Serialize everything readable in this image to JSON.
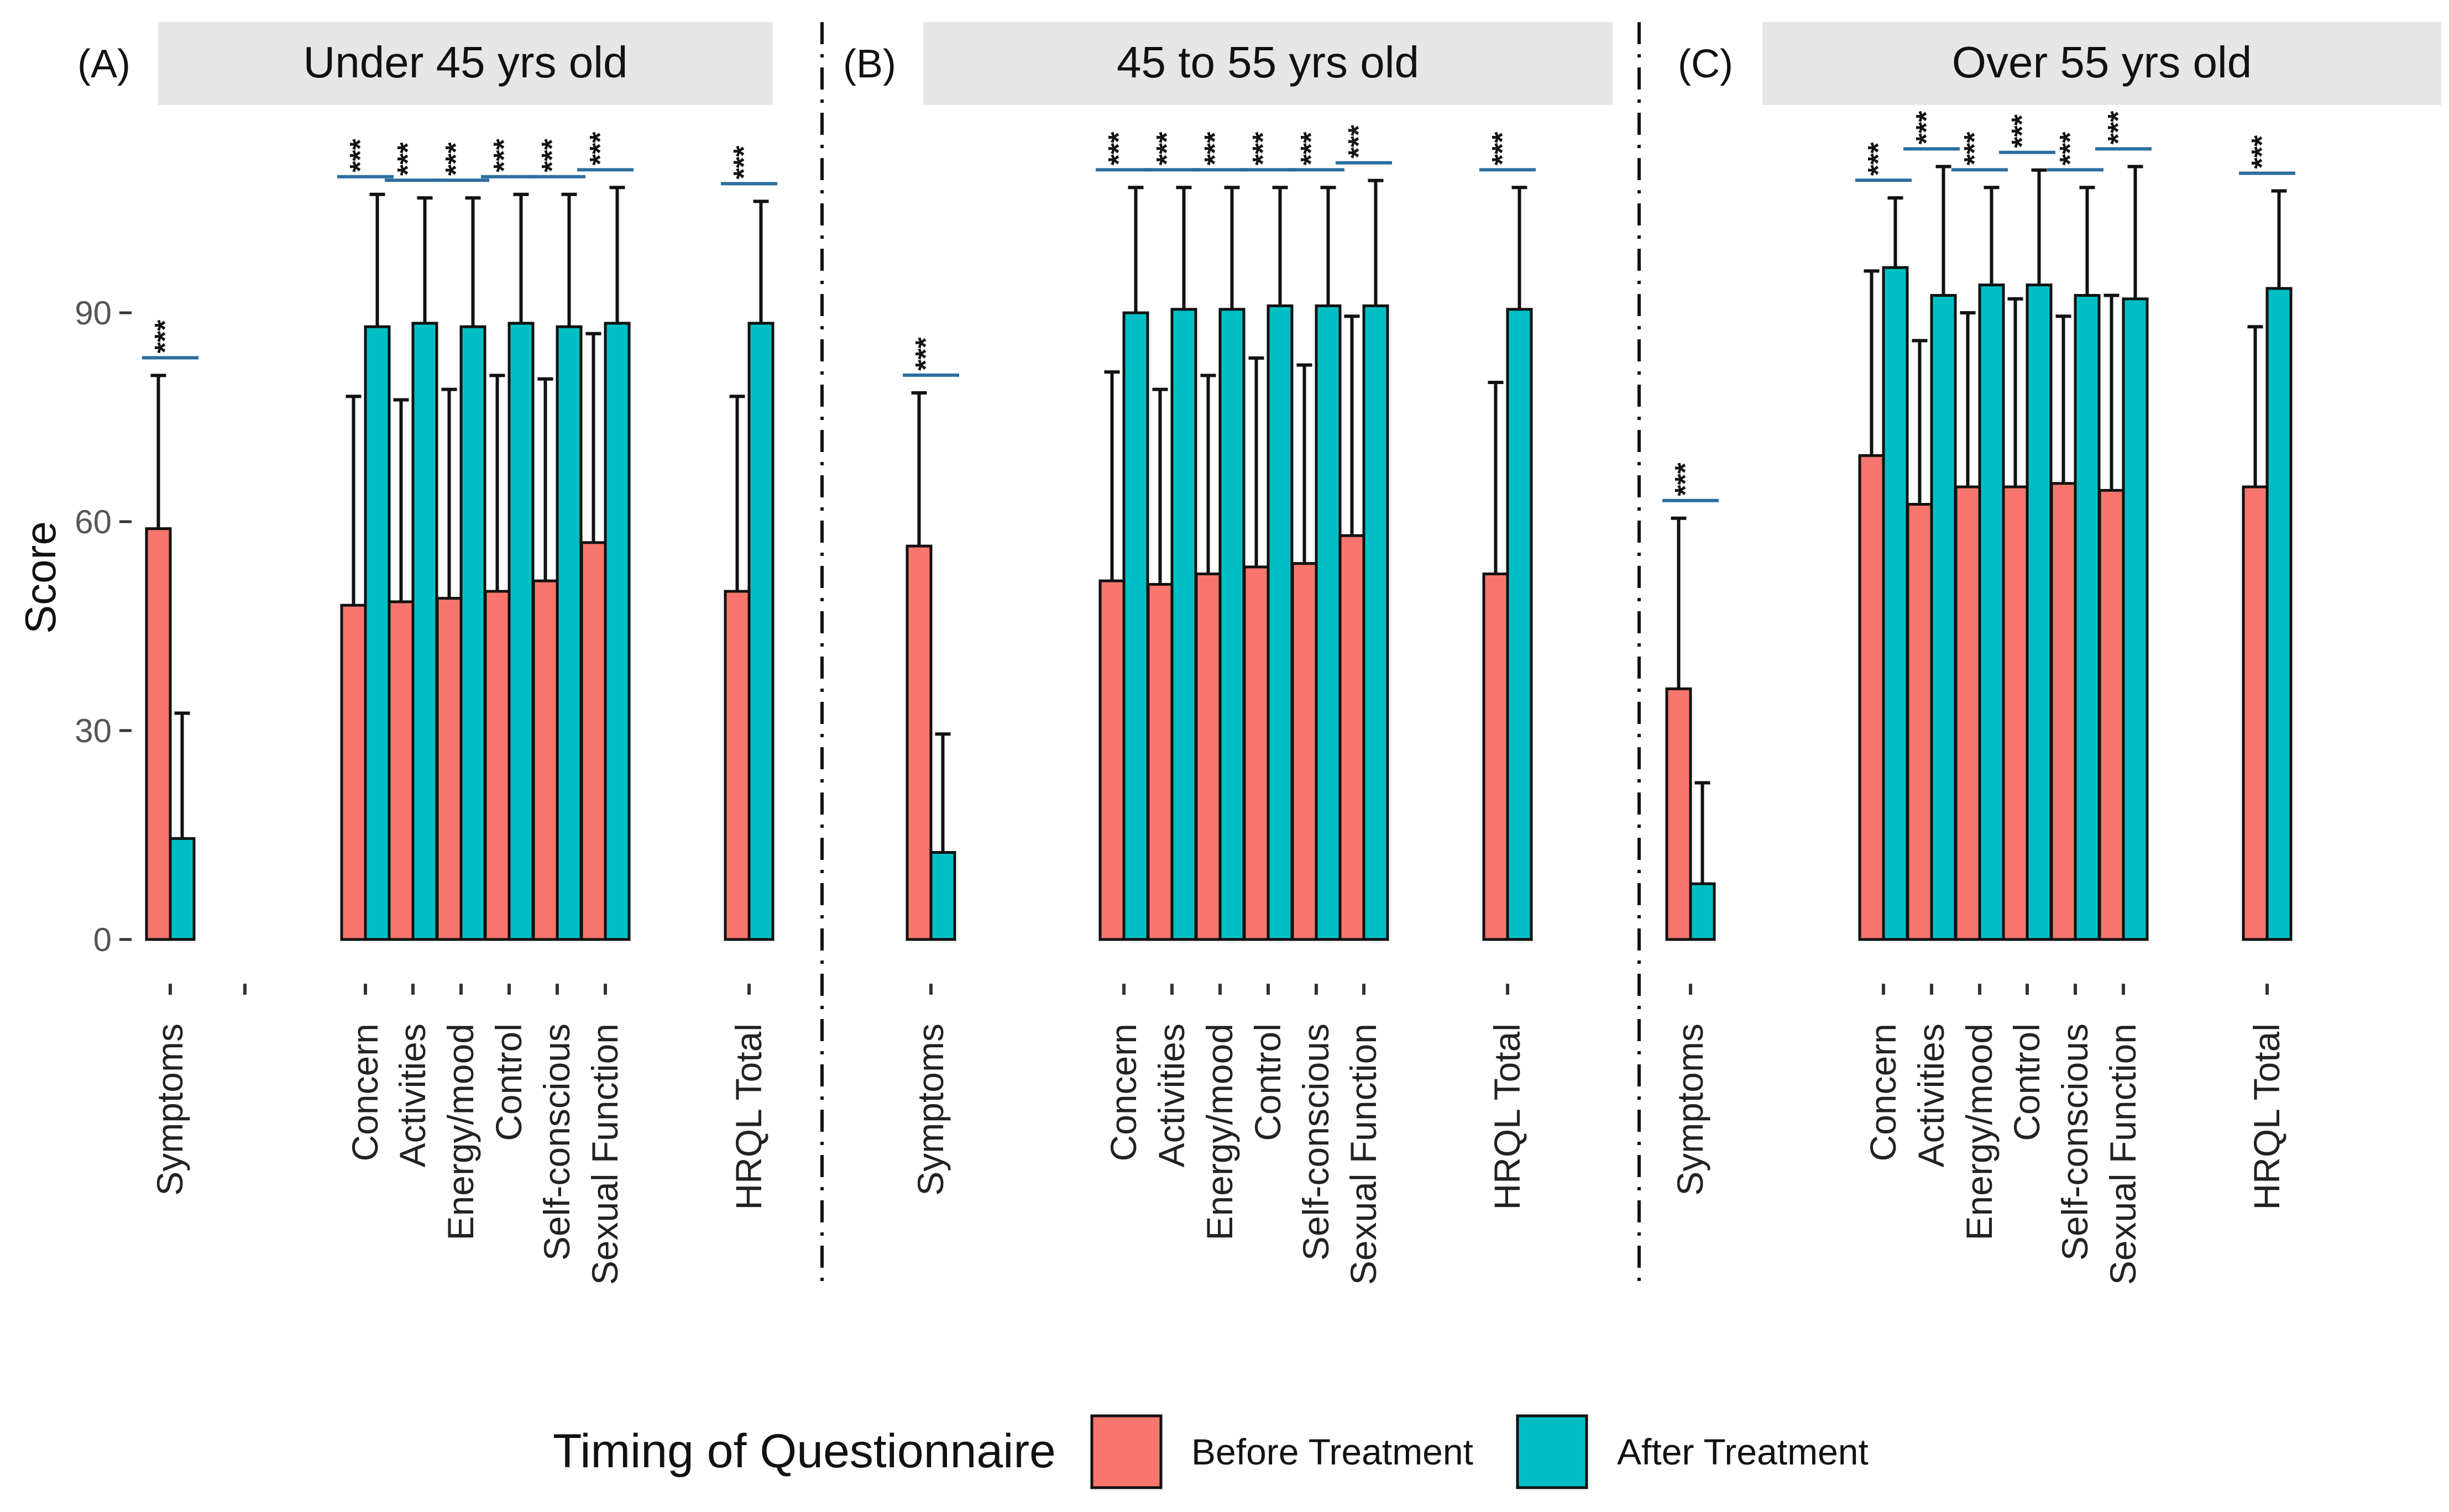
{
  "chart_data": {
    "type": "bar",
    "ylabel": "Score",
    "xlabel": "",
    "ylim": [
      0,
      120
    ],
    "yticks": [
      0,
      30,
      60,
      90
    ],
    "grid": false,
    "legend": {
      "title": "Timing of Questionnaire",
      "position": "bottom",
      "items": [
        {
          "name": "Before Treatment",
          "color": "#F8766D"
        },
        {
          "name": "After Treatment",
          "color": "#00BFC4"
        }
      ]
    },
    "significance_label": "***",
    "panels": [
      {
        "tag": "(A)",
        "title": "Under 45 yrs old",
        "categories": [
          "Symptoms",
          "",
          "Concern",
          "Activities",
          "Energy/mood",
          "Control",
          "Self-conscious",
          "Sexual Function",
          "HRQL Total"
        ],
        "series": [
          {
            "name": "Before Treatment",
            "values": [
              59,
              null,
              48,
              48.5,
              49,
              50,
              51.5,
              57,
              50
            ],
            "error_upper": [
              81,
              null,
              78,
              77.5,
              79,
              81,
              80.5,
              87,
              78
            ]
          },
          {
            "name": "After Treatment",
            "values": [
              14.5,
              null,
              88,
              88.5,
              88,
              88.5,
              88,
              88.5,
              88.5
            ],
            "error_upper": [
              32.5,
              null,
              107,
              106.5,
              106.5,
              107,
              107,
              108,
              106
            ]
          }
        ],
        "significance": [
          true,
          false,
          true,
          true,
          true,
          true,
          true,
          true,
          true
        ]
      },
      {
        "tag": "(B)",
        "title": "45 to 55 yrs old",
        "categories": [
          "Symptoms",
          "Concern",
          "Activities",
          "Energy/mood",
          "Control",
          "Self-conscious",
          "Sexual Function",
          "HRQL Total"
        ],
        "series": [
          {
            "name": "Before Treatment",
            "values": [
              56.5,
              51.5,
              51,
              52.5,
              53.5,
              54,
              58,
              52.5
            ],
            "error_upper": [
              78.5,
              81.5,
              79,
              81,
              83.5,
              82.5,
              89.5,
              80
            ]
          },
          {
            "name": "After Treatment",
            "values": [
              12.5,
              90,
              90.5,
              90.5,
              91,
              91,
              91,
              90.5
            ],
            "error_upper": [
              29.5,
              108,
              108,
              108,
              108,
              108,
              109,
              108
            ]
          }
        ],
        "significance": [
          true,
          true,
          true,
          true,
          true,
          true,
          true,
          true
        ]
      },
      {
        "tag": "(C)",
        "title": "Over 55 yrs old",
        "categories": [
          "Symptoms",
          "Concern",
          "Activities",
          "Energy/mood",
          "Control",
          "Self-conscious",
          "Sexual Function",
          "HRQL Total"
        ],
        "series": [
          {
            "name": "Before Treatment",
            "values": [
              36,
              69.5,
              62.5,
              65,
              65,
              65.5,
              64.5,
              65
            ],
            "error_upper": [
              60.5,
              96,
              86,
              90,
              92,
              89.5,
              92.5,
              88
            ]
          },
          {
            "name": "After Treatment",
            "values": [
              8,
              96.5,
              92.5,
              94,
              94,
              92.5,
              92,
              93.5
            ],
            "error_upper": [
              22.5,
              106.5,
              111,
              108,
              110.5,
              108,
              111,
              107.5
            ]
          }
        ],
        "significance": [
          true,
          true,
          true,
          true,
          true,
          true,
          true,
          true
        ]
      }
    ]
  }
}
